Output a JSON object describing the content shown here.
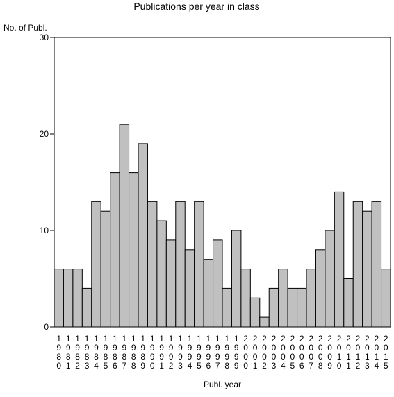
{
  "chart_data": {
    "type": "bar",
    "title": "Publications per year in class",
    "ylabel": "No. of Publ.",
    "xlabel": "Publ. year",
    "ylim": [
      0,
      30
    ],
    "yticks": [
      0,
      10,
      20,
      30
    ],
    "grid": false,
    "categories": [
      "1980",
      "1981",
      "1982",
      "1983",
      "1984",
      "1985",
      "1986",
      "1987",
      "1988",
      "1989",
      "1990",
      "1991",
      "1992",
      "1993",
      "1994",
      "1995",
      "1996",
      "1997",
      "1998",
      "1999",
      "2000",
      "2001",
      "2002",
      "2003",
      "2004",
      "2005",
      "2006",
      "2007",
      "2008",
      "2009",
      "2010",
      "2011",
      "2012",
      "2013",
      "2014",
      "2015"
    ],
    "values": [
      6,
      6,
      6,
      4,
      13,
      12,
      16,
      21,
      16,
      19,
      13,
      11,
      9,
      13,
      8,
      13,
      7,
      9,
      4,
      10,
      6,
      3,
      1,
      4,
      6,
      4,
      4,
      6,
      8,
      10,
      14,
      5,
      13,
      12,
      13,
      6
    ],
    "colors": {
      "bar_fill": "#c0c0c0",
      "bar_stroke": "#000000",
      "axis": "#000000",
      "background": "#ffffff"
    }
  }
}
